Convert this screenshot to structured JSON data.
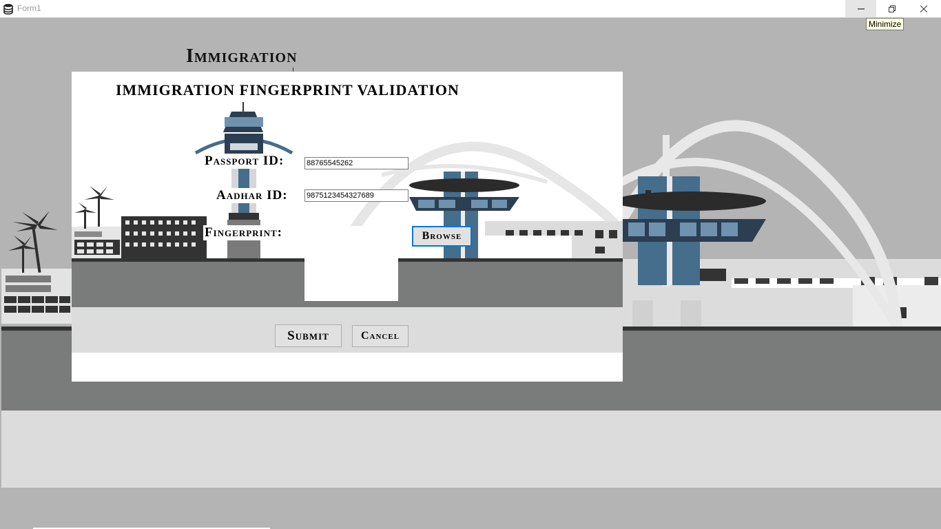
{
  "window": {
    "title": "Form1",
    "controls": {
      "minimize_tooltip": "Minimize"
    }
  },
  "background": {
    "heading": "Immigration"
  },
  "dialog": {
    "title": "IMMIGRATION FINGERPRINT VALIDATION",
    "passport": {
      "label": "Passport ID:",
      "value": "88765545262"
    },
    "aadhar": {
      "label": "Aadhar ID:",
      "value": "9875123454327689"
    },
    "fingerprint": {
      "label": "Fingerprint:"
    },
    "browse_label": "Browse",
    "submit_label": "Submit",
    "cancel_label": "Cancel"
  },
  "icons": {
    "app": "database-icon",
    "minimize": "minimize-icon",
    "restore": "restore-icon",
    "close": "close-icon"
  },
  "colors": {
    "accent_focus": "#0078d7",
    "illustration_blue": "#456d8c",
    "ground_dark": "#7a7b7b",
    "ground_light": "#dcdcdc"
  }
}
